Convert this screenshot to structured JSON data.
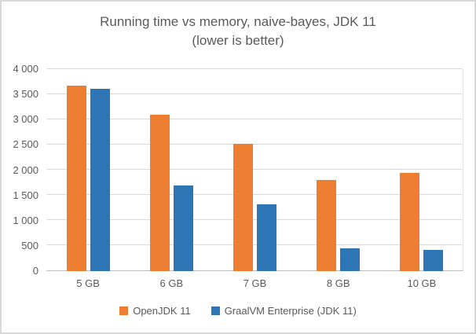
{
  "chart_data": {
    "type": "bar",
    "title_line1": "Running time vs memory, naive-bayes, JDK 11",
    "title_line2": "(lower is better)",
    "categories": [
      "5 GB",
      "6 GB",
      "7 GB",
      "8 GB",
      "10 GB"
    ],
    "series": [
      {
        "name": "OpenJDK 11",
        "color": "#ED7D31",
        "values": [
          3680,
          3100,
          2520,
          1800,
          1940
        ]
      },
      {
        "name": "GraalVM Enterprise (JDK 11)",
        "color": "#2E75B6",
        "values": [
          3610,
          1700,
          1320,
          450,
          420
        ]
      }
    ],
    "xlabel": "",
    "ylabel": "",
    "ylim": [
      0,
      4000
    ],
    "ytick_interval": 500,
    "yticks": [
      {
        "value": 4000,
        "label": "4 000"
      },
      {
        "value": 3500,
        "label": "3 500"
      },
      {
        "value": 3000,
        "label": "3 000"
      },
      {
        "value": 2500,
        "label": "2 500"
      },
      {
        "value": 2000,
        "label": "2 000"
      },
      {
        "value": 1500,
        "label": "1 500"
      },
      {
        "value": 1000,
        "label": "1 000"
      },
      {
        "value": 500,
        "label": "500"
      },
      {
        "value": 0,
        "label": "0"
      }
    ],
    "grid": true,
    "legend_position": "bottom"
  },
  "styles": {
    "text_color": "#595959",
    "gridline_color": "#D9D9D9",
    "axis_line_color": "#BDBDBD",
    "border_color": "#D8D8D8",
    "background": "#FFFFFF"
  }
}
